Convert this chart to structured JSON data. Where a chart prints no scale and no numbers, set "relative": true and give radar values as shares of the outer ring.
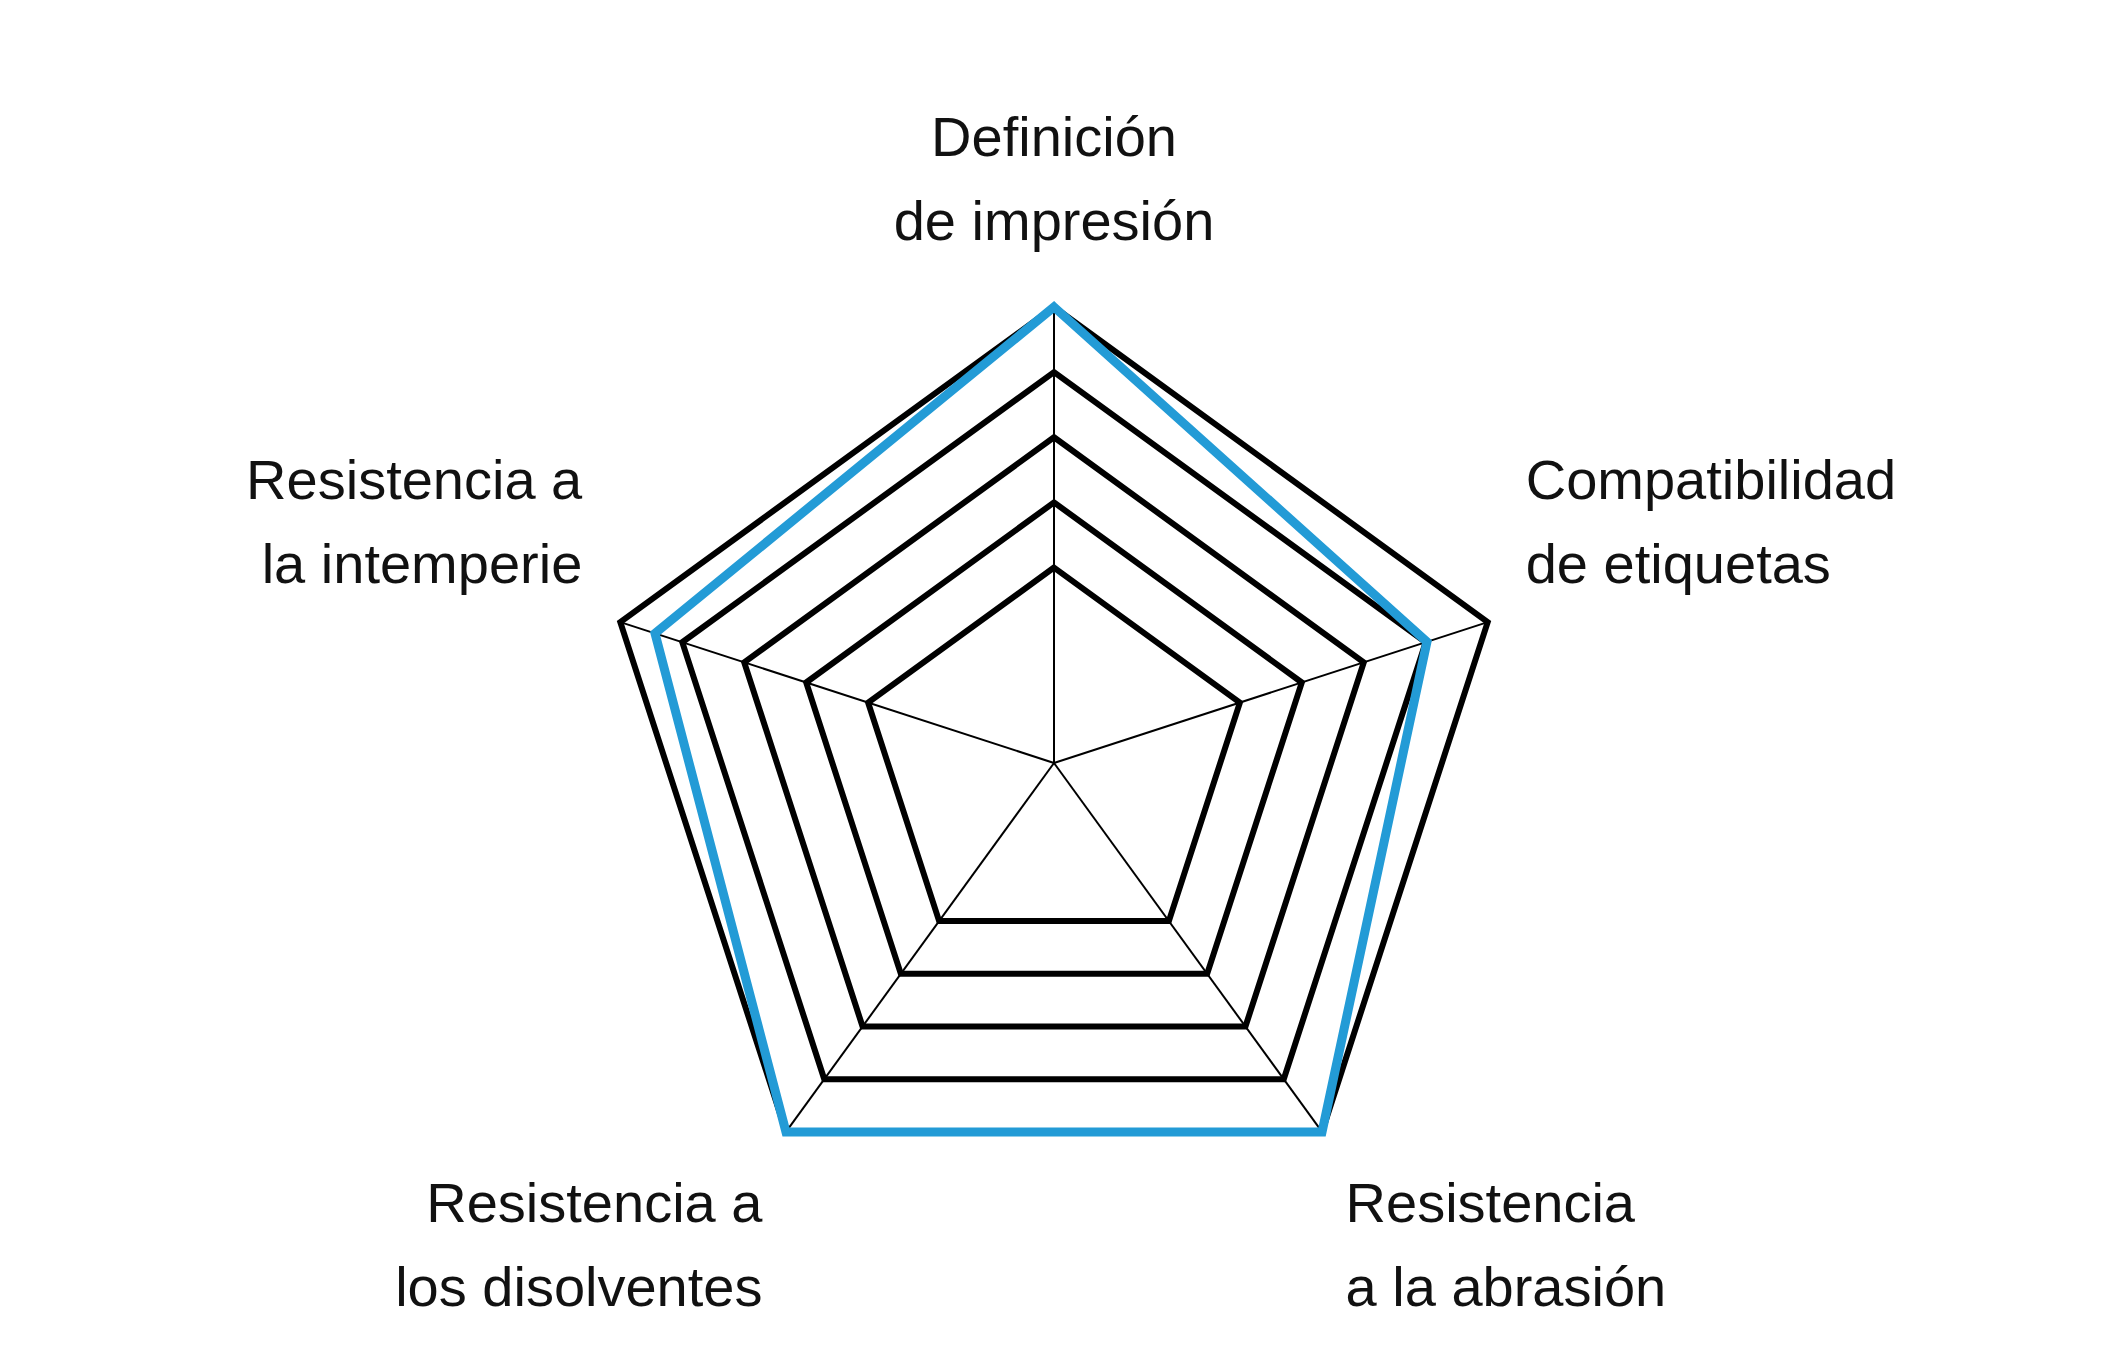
{
  "chart_data": {
    "type": "radar",
    "relative": true,
    "categories": [
      "Definición de impresión",
      "Compatibilidad de etiquetas",
      "Resistencia a la abrasión",
      "Resistencia a los disolventes",
      "Resistencia a la intemperie"
    ],
    "series": [
      {
        "color": "#239bd6",
        "values": [
          1,
          0.86,
          1,
          1,
          0.92
        ]
      }
    ],
    "legend": false,
    "marker": "none",
    "grid": true
  }
}
